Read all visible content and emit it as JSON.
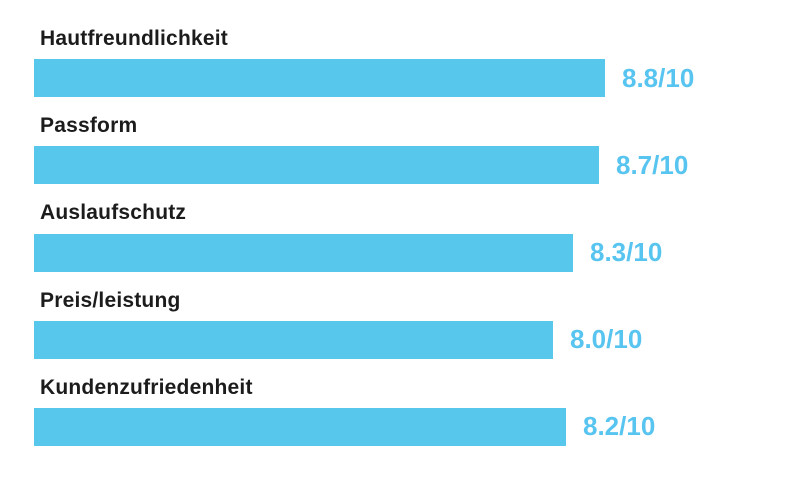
{
  "chart_data": {
    "type": "bar",
    "orientation": "horizontal",
    "title": "",
    "categories": [
      "Hautfreundlichkeit",
      "Passform",
      "Auslaufschutz",
      "Preis/leistung",
      "Kundenzufriedenheit"
    ],
    "values": [
      8.8,
      8.7,
      8.3,
      8.0,
      8.2
    ],
    "value_labels": [
      "8.8/10",
      "8.7/10",
      "8.3/10",
      "8.0/10",
      "8.2/10"
    ],
    "scale_max": 10,
    "grid": false,
    "legend": false,
    "bar_color": "#57c8ec",
    "value_text_color": "#58c4f0",
    "label_text_color": "#1c1c1c",
    "background_color": "#ffffff"
  },
  "rows": [
    {
      "label": "Hautfreundlichkeit",
      "value_label": "8.8/10"
    },
    {
      "label": "Passform",
      "value_label": "8.7/10"
    },
    {
      "label": "Auslaufschutz",
      "value_label": "8.3/10"
    },
    {
      "label": "Preis/leistung",
      "value_label": "8.0/10"
    },
    {
      "label": "Kundenzufriedenheit",
      "value_label": "8.2/10"
    }
  ]
}
